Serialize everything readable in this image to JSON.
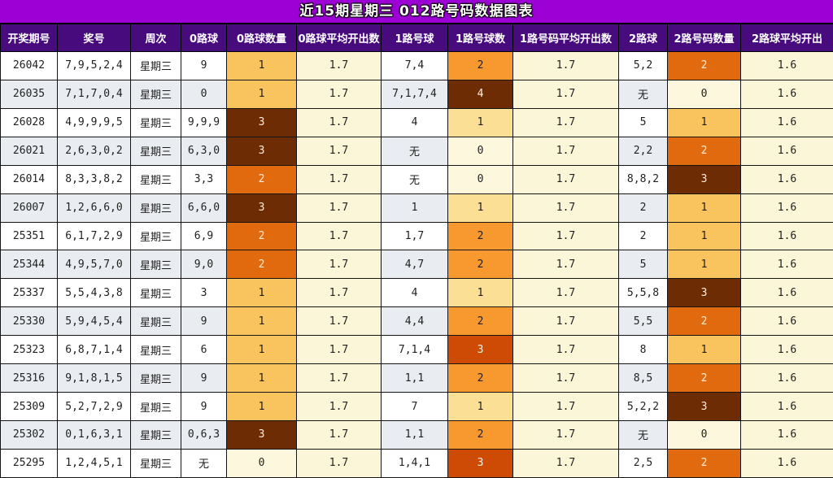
{
  "chart_data": {
    "type": "table",
    "title": "近15期星期三 012路号码数据图表",
    "columns": [
      "开奖期号",
      "奖号",
      "周次",
      "0路球",
      "0路球数量",
      "0路球平均开出数",
      "1路号球",
      "1路号球数",
      "1路号码平均开出数",
      "2路球",
      "2路号码数量",
      "2路球平均开出"
    ],
    "rows": [
      [
        "26042",
        "7,9,5,2,4",
        "星期三",
        "9",
        "1",
        "1.7",
        "7,4",
        "2",
        "1.7",
        "5,2",
        "2",
        "1.6"
      ],
      [
        "26035",
        "7,1,7,0,4",
        "星期三",
        "0",
        "1",
        "1.7",
        "7,1,7,4",
        "4",
        "1.7",
        "无",
        "0",
        "1.6"
      ],
      [
        "26028",
        "4,9,9,9,5",
        "星期三",
        "9,9,9",
        "3",
        "1.7",
        "4",
        "1",
        "1.7",
        "5",
        "1",
        "1.6"
      ],
      [
        "26021",
        "2,6,3,0,2",
        "星期三",
        "6,3,0",
        "3",
        "1.7",
        "无",
        "0",
        "1.7",
        "2,2",
        "2",
        "1.6"
      ],
      [
        "26014",
        "8,3,3,8,2",
        "星期三",
        "3,3",
        "2",
        "1.7",
        "无",
        "0",
        "1.7",
        "8,8,2",
        "3",
        "1.6"
      ],
      [
        "26007",
        "1,2,6,6,0",
        "星期三",
        "6,6,0",
        "3",
        "1.7",
        "1",
        "1",
        "1.7",
        "2",
        "1",
        "1.6"
      ],
      [
        "25351",
        "6,1,7,2,9",
        "星期三",
        "6,9",
        "2",
        "1.7",
        "1,7",
        "2",
        "1.7",
        "2",
        "1",
        "1.6"
      ],
      [
        "25344",
        "4,9,5,7,0",
        "星期三",
        "9,0",
        "2",
        "1.7",
        "4,7",
        "2",
        "1.7",
        "5",
        "1",
        "1.6"
      ],
      [
        "25337",
        "5,5,4,3,8",
        "星期三",
        "3",
        "1",
        "1.7",
        "4",
        "1",
        "1.7",
        "5,5,8",
        "3",
        "1.6"
      ],
      [
        "25330",
        "5,9,4,5,4",
        "星期三",
        "9",
        "1",
        "1.7",
        "4,4",
        "2",
        "1.7",
        "5,5",
        "2",
        "1.6"
      ],
      [
        "25323",
        "6,8,7,1,4",
        "星期三",
        "6",
        "1",
        "1.7",
        "7,1,4",
        "3",
        "1.7",
        "8",
        "1",
        "1.6"
      ],
      [
        "25316",
        "9,1,8,1,5",
        "星期三",
        "9",
        "1",
        "1.7",
        "1,1",
        "2",
        "1.7",
        "8,5",
        "2",
        "1.6"
      ],
      [
        "25309",
        "5,2,7,2,9",
        "星期三",
        "9",
        "1",
        "1.7",
        "7",
        "1",
        "1.7",
        "5,2,2",
        "3",
        "1.6"
      ],
      [
        "25302",
        "0,1,6,3,1",
        "星期三",
        "0,6,3",
        "3",
        "1.7",
        "1,1",
        "2",
        "1.7",
        "无",
        "0",
        "1.6"
      ],
      [
        "25295",
        "1,2,4,5,1",
        "星期三",
        "无",
        "0",
        "1.7",
        "1,4,1",
        "3",
        "1.7",
        "2,5",
        "2",
        "1.6"
      ]
    ]
  },
  "colors": {
    "title_bg": "#9C00D4",
    "header_bg": "#470B7D",
    "header_text": "#FFFFFF",
    "row_odd_bg": "#FFFFFF",
    "row_even_bg": "#E9EDF2",
    "average_cell_bg": "#FCF6D8",
    "count_scale_road0_road2": {
      "0": "#FDF8DD",
      "1": "#F9C45E",
      "2": "#E26A0E",
      "3": "#6E2C05"
    },
    "count_scale_road1": {
      "0": "#FDF8DD",
      "1": "#FBDF94",
      "2": "#F8992F",
      "3": "#CD4B04",
      "4": "#6E2C05"
    },
    "dark_count_backgrounds": [
      "#E26A0E",
      "#CD4B04",
      "#6E2C05"
    ]
  }
}
